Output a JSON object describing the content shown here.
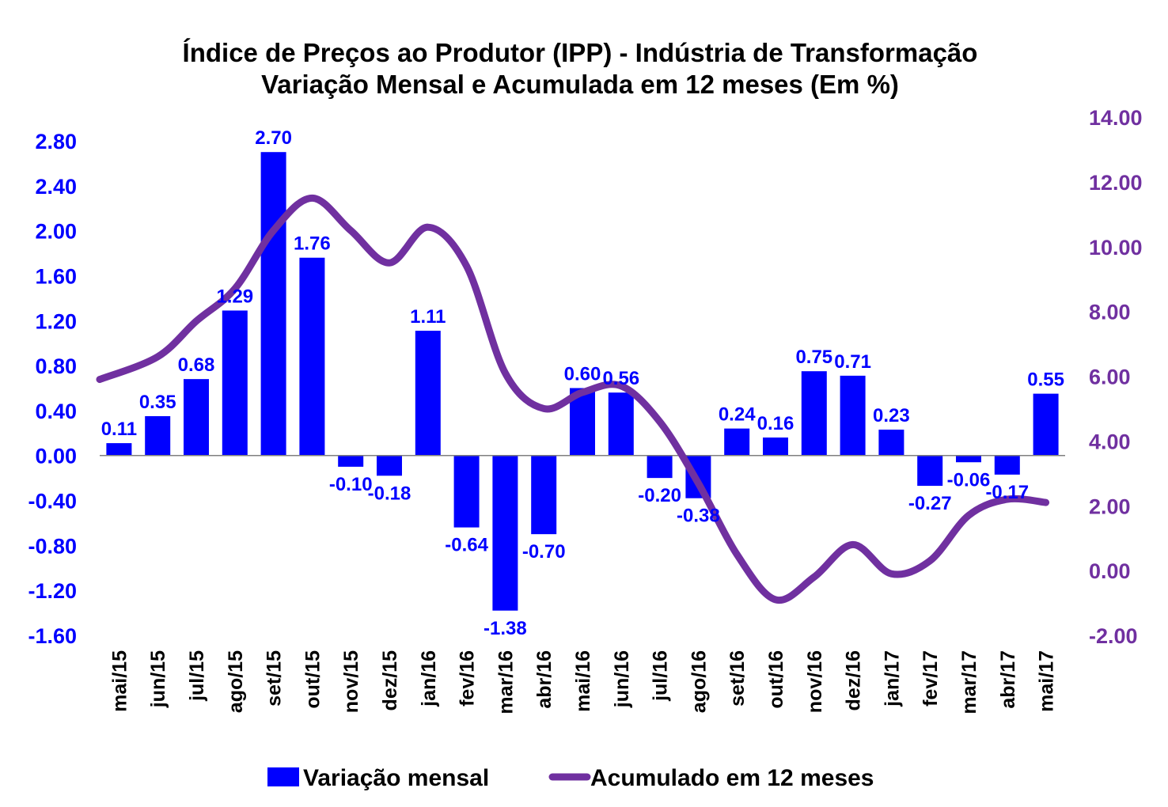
{
  "chart_data": {
    "type": "bar",
    "title_lines": [
      "Índice de Preços ao Produtor (IPP) - Indústria de Transformação",
      "Variação Mensal e Acumulada em 12 meses (Em %)"
    ],
    "categories": [
      "mai/15",
      "jun/15",
      "jul/15",
      "ago/15",
      "set/15",
      "out/15",
      "nov/15",
      "dez/15",
      "jan/16",
      "fev/16",
      "mar/16",
      "abr/16",
      "mai/16",
      "jun/16",
      "jul/16",
      "ago/16",
      "set/16",
      "out/16",
      "nov/16",
      "dez/16",
      "jan/17",
      "fev/17",
      "mar/17",
      "abr/17",
      "mai/17"
    ],
    "series": [
      {
        "name": "Variação mensal",
        "type": "bar",
        "axis": "left",
        "color": "#0000ff",
        "values": [
          0.11,
          0.35,
          0.68,
          1.29,
          2.7,
          1.76,
          -0.1,
          -0.18,
          1.11,
          -0.64,
          -1.38,
          -0.7,
          0.6,
          0.56,
          -0.2,
          -0.38,
          0.24,
          0.16,
          0.75,
          0.71,
          0.23,
          -0.27,
          -0.06,
          -0.17,
          0.55
        ],
        "labels": [
          "0.11",
          "0.35",
          "0.68",
          "1.29",
          "2.70",
          "1.76",
          "-0.10",
          "-0.18",
          "1.11",
          "-0.64",
          "-1.38",
          "-0.70",
          "0.60",
          "0.56",
          "-0.20",
          "-0.38",
          "0.24",
          "0.16",
          "0.75",
          "0.71",
          "0.23",
          "-0.27",
          "-0.06",
          "-0.17",
          "0.55"
        ]
      },
      {
        "name": "Acumulado em 12 meses",
        "type": "line",
        "axis": "right",
        "color": "#7030a0",
        "values": [
          5.9,
          6.6,
          7.7,
          8.7,
          10.5,
          11.5,
          10.5,
          9.5,
          10.6,
          9.4,
          6.1,
          5.0,
          5.5,
          5.7,
          4.6,
          2.7,
          0.5,
          -0.9,
          -0.2,
          0.8,
          -0.1,
          0.3,
          1.7,
          2.2,
          2.1
        ]
      }
    ],
    "y_left": {
      "range": [
        -1.6,
        2.8
      ],
      "ticks": [
        "2.80",
        "2.40",
        "2.00",
        "1.60",
        "1.20",
        "0.80",
        "0.40",
        "0.00",
        "-0.40",
        "-0.80",
        "-1.20",
        "-1.60"
      ],
      "color": "#0000ff"
    },
    "y_right": {
      "range": [
        -2.0,
        14.0
      ],
      "ticks": [
        "14.00",
        "12.00",
        "10.00",
        "8.00",
        "6.00",
        "4.00",
        "2.00",
        "0.00",
        "-2.00"
      ],
      "color": "#7030a0"
    },
    "grid": false,
    "legend": {
      "position": "bottom",
      "items": [
        "Variação mensal",
        "Acumulado em 12 meses"
      ]
    }
  }
}
